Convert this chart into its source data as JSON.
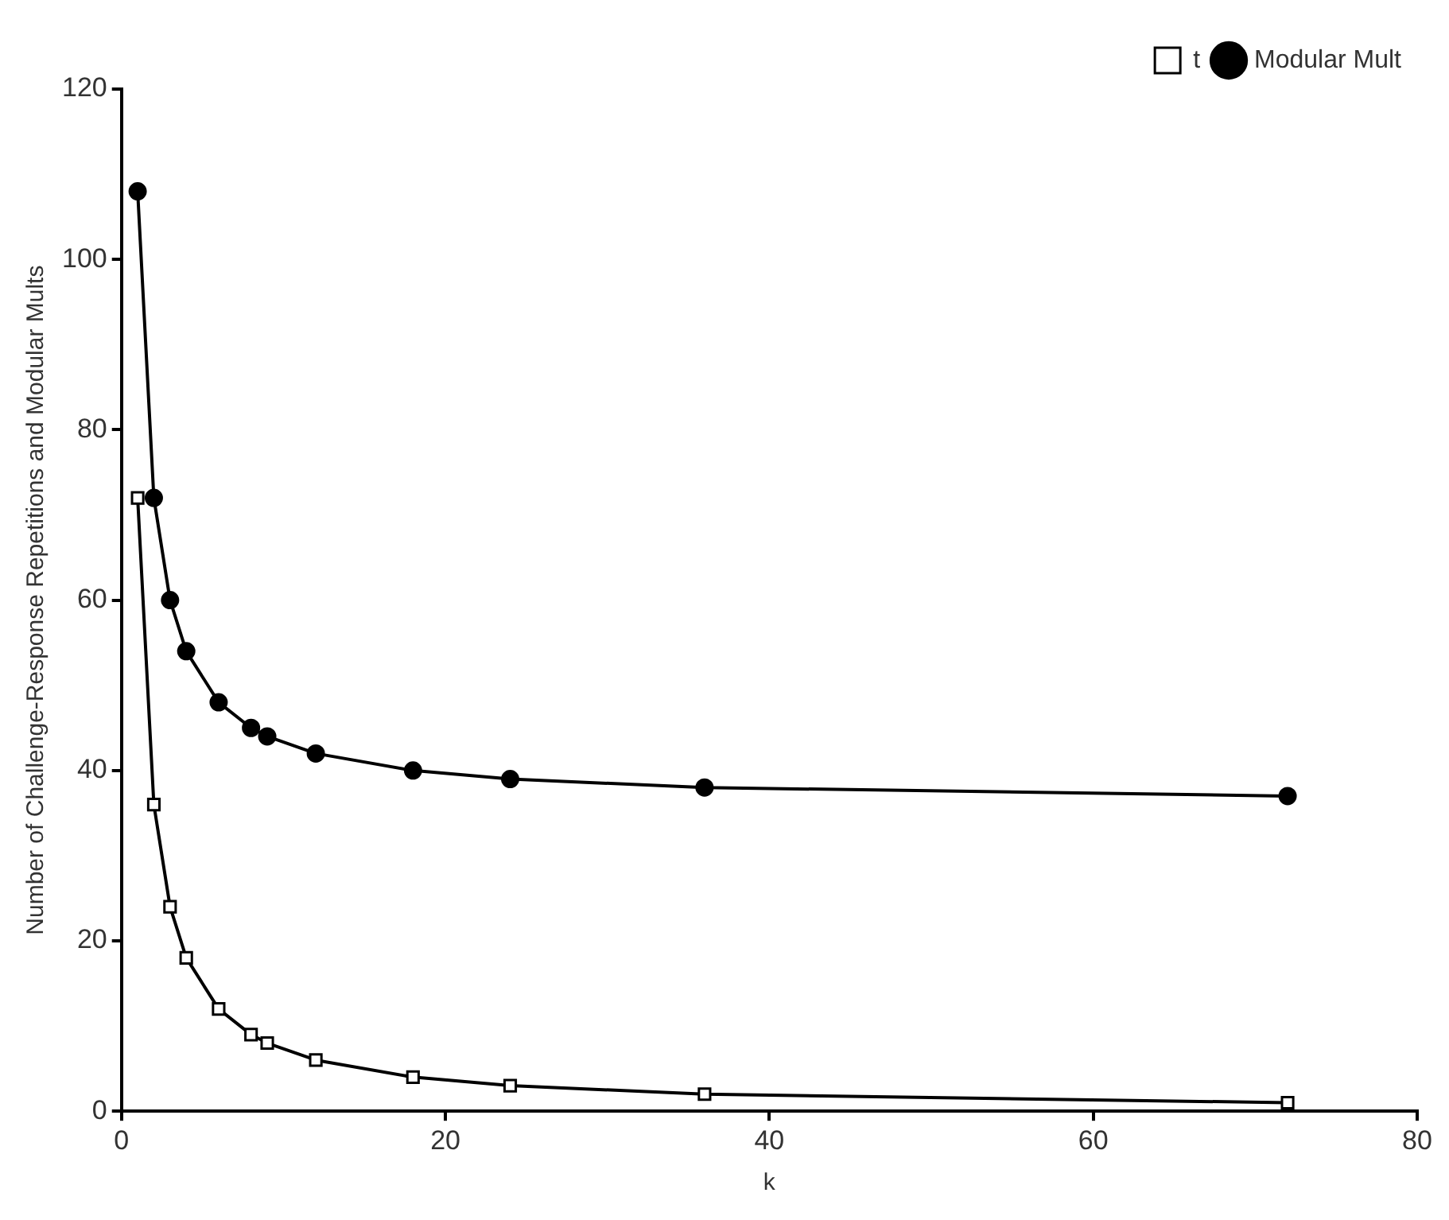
{
  "chart_data": {
    "type": "line",
    "xlabel": "k",
    "ylabel": "Number of Challenge-Response Repetitions and Modular Mults",
    "x": [
      1,
      2,
      3,
      4,
      6,
      8,
      9,
      12,
      18,
      24,
      36,
      72
    ],
    "series": [
      {
        "name": "t",
        "color": "#000000",
        "marker": "square",
        "values": [
          72,
          36,
          24,
          18,
          12,
          9,
          8,
          6,
          4,
          3,
          2,
          1
        ]
      },
      {
        "name": "Modular Mult",
        "color": "#000000",
        "marker": "circle",
        "values": [
          108,
          72,
          60,
          54,
          48,
          45,
          44,
          42,
          40,
          39,
          38,
          37
        ]
      }
    ],
    "xlim": [
      0,
      80
    ],
    "xticks": [
      0,
      20,
      40,
      60,
      80
    ],
    "ylim": [
      0,
      120
    ],
    "yticks": [
      0,
      20,
      40,
      60,
      80,
      100,
      120
    ],
    "grid": false,
    "legend": "top right",
    "line_style": "solid"
  }
}
